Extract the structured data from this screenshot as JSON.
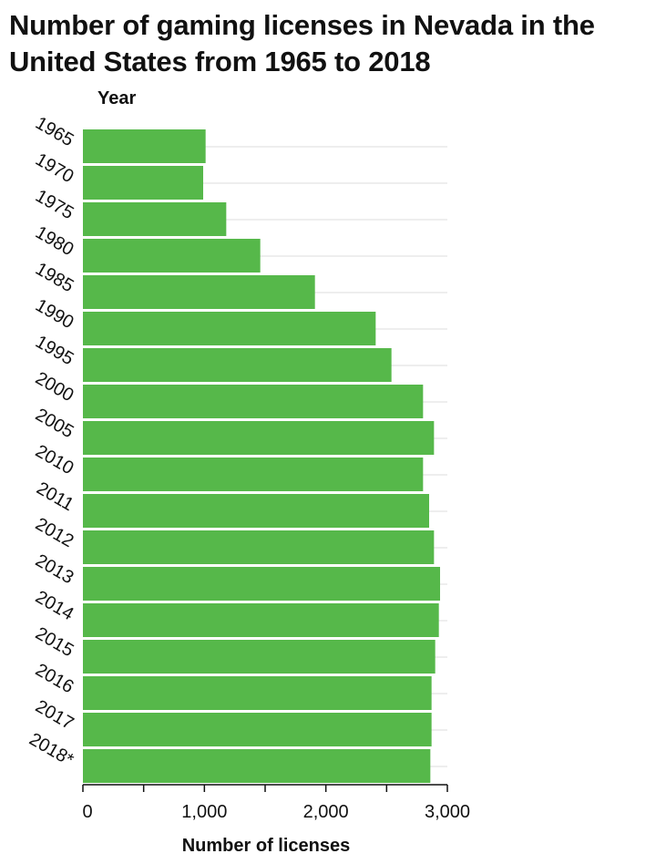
{
  "chart_data": {
    "type": "bar",
    "orientation": "horizontal",
    "title": "Number of gaming licenses in Nevada in the United States from 1965 to 2018",
    "xlabel": "Number of licenses",
    "ylabel": "Year",
    "categories": [
      "1965",
      "1970",
      "1975",
      "1980",
      "1985",
      "1990",
      "1995",
      "2000",
      "2005",
      "2010",
      "2011",
      "2012",
      "2013",
      "2014",
      "2015",
      "2016",
      "2017",
      "2018*"
    ],
    "values": [
      1010,
      990,
      1180,
      1460,
      1910,
      2410,
      2540,
      2800,
      2890,
      2800,
      2850,
      2890,
      2940,
      2930,
      2900,
      2870,
      2870,
      2860
    ],
    "xlim": [
      0,
      3000
    ],
    "xticks": [
      0,
      1000,
      2000,
      3000
    ],
    "xtick_labels": [
      "0",
      "1,000",
      "2,000",
      "3,000"
    ],
    "grid": "vertical gridlines",
    "bar_color": "#56b84a"
  }
}
